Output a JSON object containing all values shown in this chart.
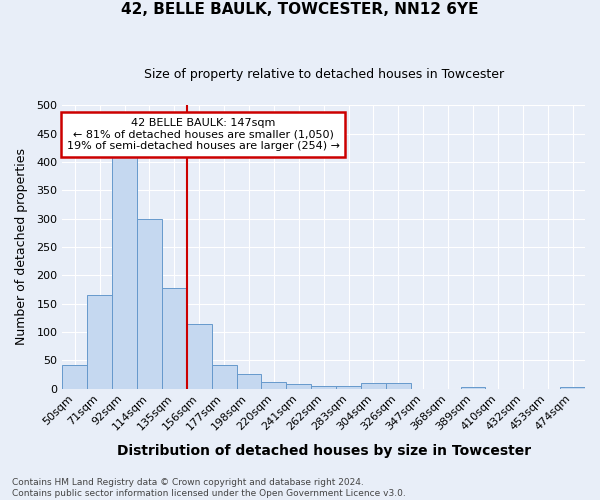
{
  "title": "42, BELLE BAULK, TOWCESTER, NN12 6YE",
  "subtitle": "Size of property relative to detached houses in Towcester",
  "xlabel": "Distribution of detached houses by size in Towcester",
  "ylabel": "Number of detached properties",
  "bin_labels": [
    "50sqm",
    "71sqm",
    "92sqm",
    "114sqm",
    "135sqm",
    "156sqm",
    "177sqm",
    "198sqm",
    "220sqm",
    "241sqm",
    "262sqm",
    "283sqm",
    "304sqm",
    "326sqm",
    "347sqm",
    "368sqm",
    "389sqm",
    "410sqm",
    "432sqm",
    "453sqm",
    "474sqm"
  ],
  "bar_values": [
    42,
    166,
    415,
    300,
    178,
    114,
    42,
    26,
    12,
    8,
    5,
    5,
    10,
    10,
    0,
    0,
    3,
    0,
    0,
    0,
    3
  ],
  "bar_color": "#c5d8f0",
  "bar_edge_color": "#6699cc",
  "vline_index": 5,
  "vline_color": "#cc0000",
  "ylim": [
    0,
    500
  ],
  "yticks": [
    0,
    50,
    100,
    150,
    200,
    250,
    300,
    350,
    400,
    450,
    500
  ],
  "annotation_text": "42 BELLE BAULK: 147sqm\n← 81% of detached houses are smaller (1,050)\n19% of semi-detached houses are larger (254) →",
  "annotation_box_facecolor": "#ffffff",
  "annotation_box_edgecolor": "#cc0000",
  "footer_text": "Contains HM Land Registry data © Crown copyright and database right 2024.\nContains public sector information licensed under the Open Government Licence v3.0.",
  "background_color": "#e8eef8",
  "grid_color": "#ffffff",
  "title_fontsize": 11,
  "subtitle_fontsize": 9,
  "ylabel_fontsize": 9,
  "xlabel_fontsize": 10
}
